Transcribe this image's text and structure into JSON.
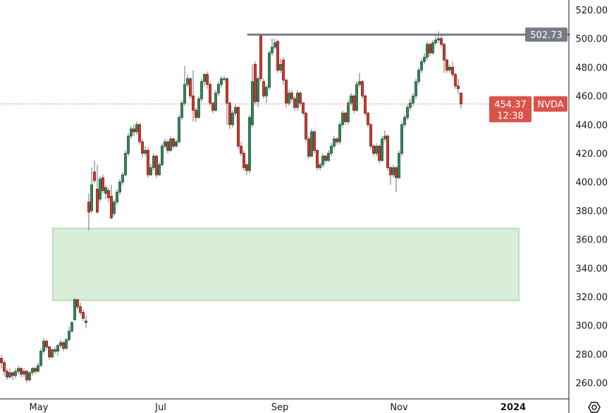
{
  "chart_data": {
    "type": "candlestick",
    "symbol": "NVDA",
    "last_price": "454.37",
    "countdown": "12:38",
    "resistance_level": "502.73",
    "ylim": [
      252,
      526
    ],
    "y_ticks": [
      "520.00",
      "500.00",
      "480.00",
      "460.00",
      "440.00",
      "420.00",
      "400.00",
      "380.00",
      "360.00",
      "340.00",
      "320.00",
      "300.00",
      "280.00",
      "260.00"
    ],
    "x_ticks": [
      {
        "label": "May",
        "index": 13.25,
        "bold": false
      },
      {
        "label": "Jul",
        "index": 56.5,
        "bold": false
      },
      {
        "label": "Sep",
        "index": 98.75,
        "bold": false
      },
      {
        "label": "Nov",
        "index": 141,
        "bold": false
      },
      {
        "label": "2024",
        "index": 181.5,
        "bold": true
      }
    ],
    "zone": {
      "price_low": 317.5,
      "price_high": 367.6,
      "start_index": 18.25,
      "end_index": 183.5,
      "fill": "#d9eed9",
      "border": "#b9e0bc"
    },
    "resistance_start_index": 87.5,
    "colors": {
      "up": "#2f8a57",
      "down": "#d8382c",
      "up_border": "#1d4d33",
      "down_border": "#6b1410",
      "wick": "#6f6f6f",
      "resistance": "#787b86",
      "last_price": "#d9534a"
    },
    "candles_ohlc": [
      [
        277,
        279,
        270,
        274
      ],
      [
        274,
        276,
        265,
        268
      ],
      [
        268,
        270,
        262,
        264
      ],
      [
        264,
        270,
        263,
        267
      ],
      [
        267,
        268,
        262,
        265
      ],
      [
        265,
        270,
        263,
        268
      ],
      [
        268,
        272,
        266,
        270
      ],
      [
        270,
        271,
        264,
        266
      ],
      [
        266,
        270,
        264,
        268
      ],
      [
        268,
        269,
        260,
        262
      ],
      [
        262,
        268,
        261,
        267
      ],
      [
        267,
        271,
        265,
        270
      ],
      [
        270,
        271,
        266,
        268
      ],
      [
        268,
        274,
        267,
        272
      ],
      [
        272,
        284,
        271,
        282
      ],
      [
        282,
        291,
        280,
        289
      ],
      [
        289,
        290,
        283,
        285
      ],
      [
        285,
        286,
        276,
        278
      ],
      [
        278,
        284,
        277,
        283
      ],
      [
        283,
        285,
        280,
        282
      ],
      [
        282,
        287,
        279,
        286
      ],
      [
        286,
        290,
        284,
        288
      ],
      [
        288,
        289,
        282,
        284
      ],
      [
        284,
        291,
        283,
        290
      ],
      [
        290,
        299,
        289,
        296
      ],
      [
        296,
        303,
        295,
        302
      ],
      [
        304,
        319,
        303,
        318
      ],
      [
        318,
        318,
        311,
        313
      ],
      [
        313,
        316,
        307,
        309
      ],
      [
        309,
        311,
        303,
        305
      ],
      [
        303,
        307,
        298,
        302
      ],
      [
        386,
        392,
        366,
        379
      ],
      [
        380,
        410,
        378,
        398
      ],
      [
        407,
        415,
        399,
        401
      ],
      [
        395,
        412,
        378,
        379
      ],
      [
        388,
        404,
        386,
        402
      ],
      [
        403,
        405,
        392,
        394
      ],
      [
        392,
        398,
        388,
        396
      ],
      [
        394,
        396,
        386,
        389
      ],
      [
        390,
        398,
        374,
        375
      ],
      [
        378,
        388,
        376,
        386
      ],
      [
        386,
        395,
        384,
        393
      ],
      [
        393,
        402,
        391,
        400
      ],
      [
        400,
        407,
        398,
        405
      ],
      [
        405,
        422,
        404,
        420
      ],
      [
        420,
        434,
        418,
        432
      ],
      [
        432,
        439,
        430,
        437
      ],
      [
        437,
        440,
        432,
        435
      ],
      [
        435,
        442,
        433,
        440
      ],
      [
        440,
        441,
        426,
        428
      ],
      [
        428,
        430,
        417,
        420
      ],
      [
        420,
        425,
        418,
        422
      ],
      [
        422,
        424,
        403,
        405
      ],
      [
        405,
        413,
        404,
        410
      ],
      [
        410,
        420,
        408,
        418
      ],
      [
        418,
        419,
        403,
        405
      ],
      [
        405,
        414,
        404,
        412
      ],
      [
        412,
        427,
        411,
        425
      ],
      [
        425,
        430,
        423,
        428
      ],
      [
        428,
        429,
        420,
        422
      ],
      [
        422,
        432,
        421,
        430
      ],
      [
        430,
        431,
        423,
        425
      ],
      [
        425,
        430,
        424,
        428
      ],
      [
        428,
        447,
        427,
        445
      ],
      [
        445,
        457,
        443,
        455
      ],
      [
        455,
        481,
        453,
        468
      ],
      [
        468,
        475,
        466,
        472
      ],
      [
        472,
        473,
        458,
        460
      ],
      [
        460,
        478,
        442,
        450
      ],
      [
        450,
        452,
        442,
        445
      ],
      [
        445,
        460,
        444,
        458
      ],
      [
        458,
        472,
        456,
        470
      ],
      [
        470,
        476,
        467,
        475
      ],
      [
        475,
        477,
        465,
        468
      ],
      [
        468,
        470,
        453,
        455
      ],
      [
        455,
        456,
        448,
        450
      ],
      [
        450,
        464,
        449,
        462
      ],
      [
        462,
        470,
        460,
        468
      ],
      [
        468,
        474,
        466,
        472
      ],
      [
        472,
        474,
        470,
        472
      ],
      [
        472,
        473,
        440,
        455
      ],
      [
        455,
        456,
        437,
        440
      ],
      [
        440,
        450,
        438,
        448
      ],
      [
        448,
        454,
        446,
        452
      ],
      [
        452,
        453,
        423,
        425
      ],
      [
        425,
        428,
        418,
        420
      ],
      [
        420,
        422,
        408,
        410
      ],
      [
        412,
        413,
        405,
        408
      ],
      [
        408,
        447,
        406,
        445
      ],
      [
        440,
        482,
        438,
        470
      ],
      [
        482,
        484,
        454,
        456
      ],
      [
        456,
        474,
        452,
        472
      ],
      [
        502,
        503,
        470,
        472
      ],
      [
        470,
        472,
        458,
        460
      ],
      [
        460,
        468,
        455,
        466
      ],
      [
        466,
        492,
        464,
        490
      ],
      [
        490,
        500,
        488,
        494
      ],
      [
        494,
        500,
        492,
        497
      ],
      [
        498,
        499,
        476,
        478
      ],
      [
        478,
        486,
        476,
        482
      ],
      [
        485,
        487,
        468,
        471
      ],
      [
        471,
        472,
        452,
        455
      ],
      [
        455,
        464,
        453,
        462
      ],
      [
        462,
        464,
        456,
        458
      ],
      [
        458,
        460,
        450,
        452
      ],
      [
        452,
        464,
        450,
        462
      ],
      [
        462,
        463,
        453,
        455
      ],
      [
        455,
        456,
        446,
        448
      ],
      [
        448,
        449,
        428,
        430
      ],
      [
        430,
        432,
        416,
        418
      ],
      [
        418,
        437,
        417,
        435
      ],
      [
        435,
        436,
        420,
        422
      ],
      [
        422,
        423,
        408,
        410
      ],
      [
        410,
        414,
        408,
        412
      ],
      [
        412,
        420,
        410,
        418
      ],
      [
        418,
        419,
        413,
        415
      ],
      [
        415,
        422,
        414,
        420
      ],
      [
        420,
        427,
        418,
        425
      ],
      [
        425,
        432,
        423,
        430
      ],
      [
        430,
        431,
        426,
        428
      ],
      [
        428,
        442,
        426,
        440
      ],
      [
        440,
        450,
        438,
        448
      ],
      [
        448,
        449,
        440,
        442
      ],
      [
        442,
        457,
        440,
        455
      ],
      [
        455,
        462,
        453,
        460
      ],
      [
        460,
        461,
        448,
        450
      ],
      [
        450,
        470,
        449,
        468
      ],
      [
        468,
        476,
        466,
        470
      ],
      [
        470,
        471,
        458,
        460
      ],
      [
        460,
        461,
        446,
        448
      ],
      [
        448,
        449,
        438,
        440
      ],
      [
        440,
        441,
        423,
        425
      ],
      [
        425,
        426,
        418,
        420
      ],
      [
        420,
        427,
        418,
        425
      ],
      [
        425,
        426,
        413,
        415
      ],
      [
        415,
        432,
        414,
        430
      ],
      [
        430,
        436,
        428,
        432
      ],
      [
        432,
        433,
        408,
        410
      ],
      [
        410,
        411,
        398,
        405
      ],
      [
        405,
        412,
        403,
        410
      ],
      [
        410,
        411,
        393,
        403
      ],
      [
        403,
        422,
        402,
        420
      ],
      [
        420,
        442,
        418,
        440
      ],
      [
        440,
        447,
        438,
        445
      ],
      [
        445,
        454,
        443,
        452
      ],
      [
        452,
        458,
        450,
        455
      ],
      [
        455,
        462,
        453,
        460
      ],
      [
        460,
        472,
        458,
        470
      ],
      [
        470,
        480,
        468,
        478
      ],
      [
        478,
        486,
        476,
        484
      ],
      [
        484,
        490,
        482,
        487
      ],
      [
        487,
        498,
        485,
        496
      ],
      [
        496,
        497,
        488,
        490
      ],
      [
        490,
        499,
        489,
        497
      ],
      [
        497,
        503,
        495,
        499
      ],
      [
        499,
        505,
        497,
        500
      ],
      [
        500,
        503,
        494,
        496
      ],
      [
        496,
        497,
        476,
        485
      ],
      [
        485,
        486,
        476,
        478
      ],
      [
        478,
        482,
        476,
        480
      ],
      [
        480,
        484,
        473,
        475
      ],
      [
        475,
        476,
        465,
        467
      ],
      [
        467,
        472,
        461,
        465
      ],
      [
        462,
        462,
        451,
        454.37
      ]
    ]
  },
  "icons": {
    "settings": "gear-hexagon-icon"
  }
}
